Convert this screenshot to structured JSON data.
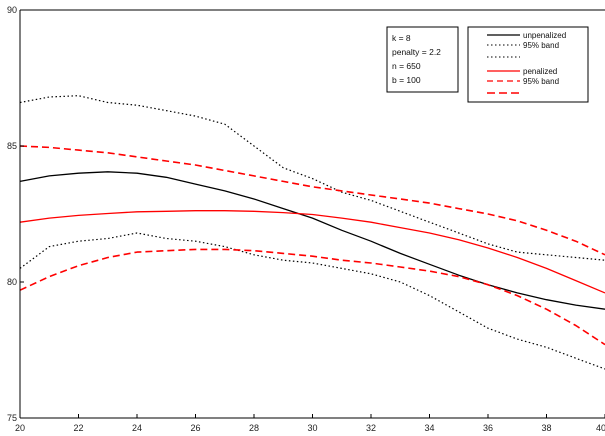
{
  "chart_data": {
    "type": "line",
    "xlim": [
      20,
      40
    ],
    "ylim": [
      75,
      90
    ],
    "x_ticks": [
      "20",
      "22",
      "24",
      "26",
      "28",
      "30",
      "32",
      "34",
      "36",
      "38",
      "40"
    ],
    "y_ticks": [
      "75",
      "80",
      "85",
      "90"
    ],
    "grid": false,
    "info_box": [
      "k = 8",
      "penalty = 2.2",
      "n = 650",
      "b = 100"
    ],
    "legend_position": "top-right",
    "x": [
      20,
      21,
      22,
      23,
      24,
      25,
      26,
      27,
      28,
      29,
      30,
      31,
      32,
      33,
      34,
      35,
      36,
      37,
      38,
      39,
      40
    ],
    "series": [
      {
        "name": "unpenalized",
        "color": "#000000",
        "dash": "solid",
        "values": [
          83.7,
          83.9,
          84.0,
          84.05,
          84.0,
          83.85,
          83.6,
          83.35,
          83.05,
          82.7,
          82.35,
          81.9,
          81.5,
          81.05,
          80.65,
          80.25,
          79.9,
          79.6,
          79.35,
          79.15,
          79.0
        ]
      },
      {
        "name": "95% band",
        "color": "#000000",
        "dash": "dotted",
        "values": [
          86.6,
          86.8,
          86.85,
          86.6,
          86.5,
          86.3,
          86.1,
          85.8,
          85.0,
          84.2,
          83.8,
          83.3,
          83.0,
          82.6,
          82.2,
          81.8,
          81.4,
          81.1,
          81.0,
          80.9,
          80.8
        ]
      },
      {
        "name": "",
        "color": "#000000",
        "dash": "dotted",
        "values": [
          80.5,
          81.3,
          81.5,
          81.6,
          81.8,
          81.6,
          81.5,
          81.3,
          81.0,
          80.8,
          80.7,
          80.5,
          80.3,
          80.0,
          79.5,
          78.9,
          78.3,
          77.9,
          77.6,
          77.2,
          76.8
        ]
      },
      {
        "name": "penalized",
        "color": "#ff0000",
        "dash": "solid",
        "values": [
          82.2,
          82.35,
          82.45,
          82.52,
          82.58,
          82.6,
          82.62,
          82.62,
          82.6,
          82.55,
          82.48,
          82.35,
          82.2,
          82.0,
          81.8,
          81.55,
          81.25,
          80.9,
          80.5,
          80.05,
          79.6
        ]
      },
      {
        "name": "95% band",
        "color": "#ff0000",
        "dash": "dashed",
        "values": [
          85.0,
          84.95,
          84.85,
          84.75,
          84.6,
          84.45,
          84.3,
          84.1,
          83.9,
          83.7,
          83.5,
          83.35,
          83.2,
          83.05,
          82.9,
          82.7,
          82.5,
          82.25,
          81.9,
          81.5,
          81.0
        ]
      },
      {
        "name": "",
        "color": "#ff0000",
        "dash": "dashed",
        "values": [
          79.7,
          80.2,
          80.6,
          80.9,
          81.1,
          81.15,
          81.2,
          81.2,
          81.15,
          81.05,
          80.95,
          80.8,
          80.7,
          80.55,
          80.4,
          80.2,
          79.9,
          79.5,
          79.0,
          78.4,
          77.7
        ]
      }
    ]
  }
}
